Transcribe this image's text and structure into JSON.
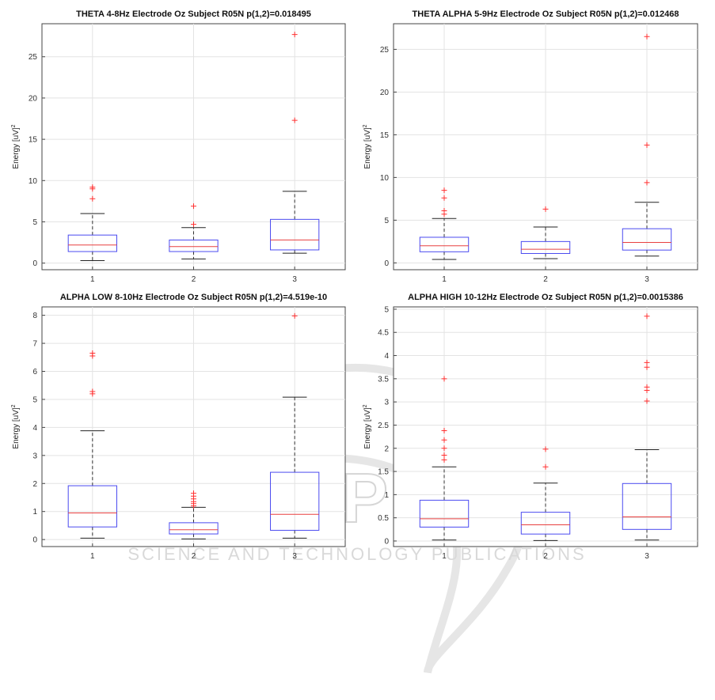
{
  "watermark": {
    "brand": "SCITEPRESS",
    "tagline": "SCIENCE AND TECHNOLOGY PUBLICATIONS"
  },
  "chart_data": [
    {
      "type": "box",
      "title": "THETA 4-8Hz Electrode Oz Subject R05N p(1,2)=0.018495",
      "ylabel": "Energy [uV]",
      "ylabel_sup": "2",
      "categories": [
        "1",
        "2",
        "3"
      ],
      "ylim": [
        -0.8,
        29
      ],
      "yticks": [
        0,
        5,
        10,
        15,
        20,
        25
      ],
      "boxes": [
        {
          "min": 0.3,
          "q1": 1.4,
          "median": 2.2,
          "q3": 3.4,
          "max": 6.0,
          "outliers": [
            7.8,
            9.0,
            9.2
          ]
        },
        {
          "min": 0.5,
          "q1": 1.4,
          "median": 2.0,
          "q3": 2.8,
          "max": 4.3,
          "outliers": [
            4.7,
            6.9
          ]
        },
        {
          "min": 1.2,
          "q1": 1.6,
          "median": 2.8,
          "q3": 5.3,
          "max": 8.7,
          "outliers": [
            17.3,
            27.7
          ]
        }
      ]
    },
    {
      "type": "box",
      "title": "THETA ALPHA 5-9Hz Electrode Oz Subject R05N p(1,2)=0.012468",
      "ylabel": "Energy [uV]",
      "ylabel_sup": "2",
      "categories": [
        "1",
        "2",
        "3"
      ],
      "ylim": [
        -0.8,
        28
      ],
      "yticks": [
        0,
        5,
        10,
        15,
        20,
        25
      ],
      "boxes": [
        {
          "min": 0.4,
          "q1": 1.3,
          "median": 2.0,
          "q3": 3.0,
          "max": 5.2,
          "outliers": [
            5.7,
            6.1,
            7.6,
            8.5
          ]
        },
        {
          "min": 0.5,
          "q1": 1.1,
          "median": 1.6,
          "q3": 2.5,
          "max": 4.2,
          "outliers": [
            6.3
          ]
        },
        {
          "min": 0.8,
          "q1": 1.5,
          "median": 2.4,
          "q3": 4.0,
          "max": 7.1,
          "outliers": [
            9.4,
            13.8,
            26.5
          ]
        }
      ]
    },
    {
      "type": "box",
      "title": "ALPHA LOW 8-10Hz Electrode Oz Subject R05N p(1,2)=4.519e-10",
      "ylabel": "Energy [uV]",
      "ylabel_sup": "2",
      "categories": [
        "1",
        "2",
        "3"
      ],
      "ylim": [
        -0.25,
        8.3
      ],
      "yticks": [
        0,
        1,
        2,
        3,
        4,
        5,
        6,
        7,
        8
      ],
      "boxes": [
        {
          "min": 0.05,
          "q1": 0.45,
          "median": 0.95,
          "q3": 1.92,
          "max": 3.88,
          "outliers": [
            5.2,
            5.28,
            6.55,
            6.65
          ]
        },
        {
          "min": 0.02,
          "q1": 0.2,
          "median": 0.35,
          "q3": 0.6,
          "max": 1.15,
          "outliers": [
            1.2,
            1.28,
            1.35,
            1.45,
            1.55,
            1.65
          ]
        },
        {
          "min": 0.05,
          "q1": 0.33,
          "median": 0.9,
          "q3": 2.4,
          "max": 5.08,
          "outliers": [
            7.98
          ]
        }
      ]
    },
    {
      "type": "box",
      "title": "ALPHA HIGH 10-12Hz Electrode Oz Subject R05N p(1,2)=0.0015386",
      "ylabel": "Energy [uV]",
      "ylabel_sup": "2",
      "categories": [
        "1",
        "2",
        "3"
      ],
      "ylim": [
        -0.12,
        5.05
      ],
      "yticks": [
        0,
        0.5,
        1,
        1.5,
        2,
        2.5,
        3,
        3.5,
        4,
        4.5,
        5
      ],
      "boxes": [
        {
          "min": 0.02,
          "q1": 0.3,
          "median": 0.48,
          "q3": 0.88,
          "max": 1.6,
          "outliers": [
            1.75,
            1.85,
            2.0,
            2.18,
            2.38,
            3.5
          ]
        },
        {
          "min": 0.01,
          "q1": 0.15,
          "median": 0.35,
          "q3": 0.62,
          "max": 1.25,
          "outliers": [
            1.6,
            1.98
          ]
        },
        {
          "min": 0.02,
          "q1": 0.25,
          "median": 0.52,
          "q3": 1.24,
          "max": 1.97,
          "outliers": [
            3.02,
            3.25,
            3.32,
            3.75,
            3.85,
            4.85
          ]
        }
      ]
    }
  ]
}
